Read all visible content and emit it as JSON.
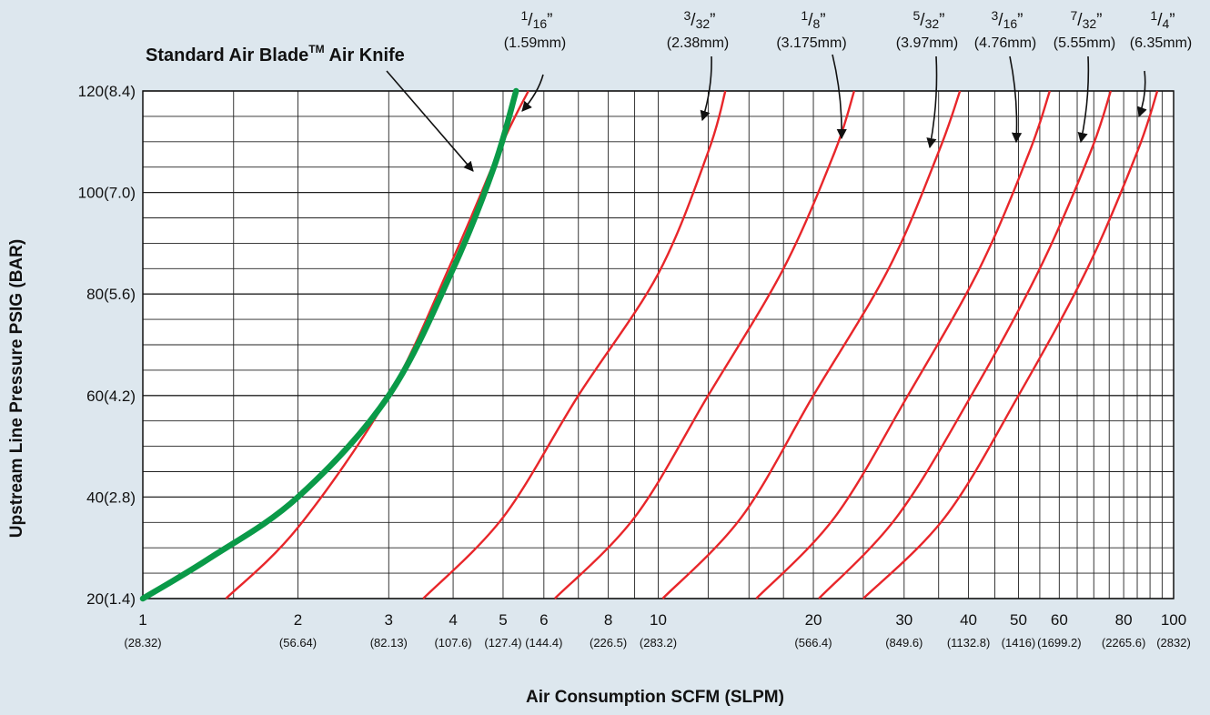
{
  "chart_data": {
    "type": "line",
    "title": "Standard Air Blade™ Air Knife",
    "title_main": "Standard Air Blade",
    "title_tm": "TM",
    "title_tail": " Air Knife",
    "xlabel": "Air Consumption SCFM (SLPM)",
    "ylabel": "Upstream Line Pressure PSIG (BAR)",
    "x_scale": "log",
    "xlim": [
      1,
      100
    ],
    "ylim": [
      20,
      120
    ],
    "grid": true,
    "x_ticks": [
      {
        "main": "1",
        "sub": "(28.32)"
      },
      {
        "main": "2",
        "sub": "(56.64)"
      },
      {
        "main": "3",
        "sub": "(82.13)"
      },
      {
        "main": "4",
        "sub": "(107.6)"
      },
      {
        "main": "5",
        "sub": "(127.4)"
      },
      {
        "main": "6",
        "sub": "(144.4)"
      },
      {
        "main": "8",
        "sub": "(226.5)"
      },
      {
        "main": "10",
        "sub": "(283.2)"
      },
      {
        "main": "20",
        "sub": "(566.4)"
      },
      {
        "main": "30",
        "sub": "(849.6)"
      },
      {
        "main": "40",
        "sub": "(1132.8)"
      },
      {
        "main": "50",
        "sub": "(1416)"
      },
      {
        "main": "60",
        "sub": "(1699.2)"
      },
      {
        "main": "80",
        "sub": "(2265.6)"
      },
      {
        "main": "100",
        "sub": "(2832)"
      }
    ],
    "y_ticks": [
      "20(1.4)",
      "40(2.8)",
      "60(4.2)",
      "80(5.6)",
      "100(7.0)",
      "120(8.4)"
    ],
    "air_knife_curve": {
      "color": "#0a9a48",
      "x": [
        1.0,
        1.35,
        2.0,
        3.0,
        4.0,
        4.8,
        5.3
      ],
      "y": [
        20,
        28,
        40,
        60,
        85,
        105,
        120
      ]
    },
    "nozzle_sizes": [
      {
        "num": "1",
        "den": "16",
        "mm": "(1.59mm)",
        "x": [
          1.45,
          2.0,
          3.0,
          4.0,
          5.0,
          5.6
        ],
        "y": [
          20,
          34,
          60,
          87,
          110,
          120
        ]
      },
      {
        "num": "3",
        "den": "32",
        "mm": "(2.38mm)",
        "x": [
          3.5,
          5.0,
          7.0,
          10.0,
          12.5,
          13.5
        ],
        "y": [
          20,
          36,
          60,
          84,
          108,
          120
        ]
      },
      {
        "num": "1",
        "den": "8",
        "mm": "(3.175mm)",
        "x": [
          6.3,
          9.0,
          12.5,
          17.5,
          22.0,
          24.0
        ],
        "y": [
          20,
          36,
          60,
          85,
          108,
          120
        ]
      },
      {
        "num": "5",
        "den": "32",
        "mm": "(3.97mm)",
        "x": [
          10.2,
          14.5,
          20.0,
          28.0,
          35.0,
          38.5
        ],
        "y": [
          20,
          36,
          60,
          85,
          108,
          120
        ]
      },
      {
        "num": "3",
        "den": "16",
        "mm": "(4.76mm)",
        "x": [
          15.5,
          22.0,
          30.5,
          42.0,
          52.5,
          57.5
        ],
        "y": [
          20,
          36,
          60,
          85,
          108,
          120
        ]
      },
      {
        "num": "7",
        "den": "32",
        "mm": "(5.55mm)",
        "x": [
          20.5,
          29.0,
          40.5,
          55.0,
          69.0,
          75.5
        ],
        "y": [
          20,
          36,
          60,
          85,
          108,
          120
        ]
      },
      {
        "num": "1",
        "den": "4",
        "mm": "(6.35mm)",
        "x": [
          25.0,
          36.0,
          50.0,
          68.0,
          85.0,
          93.0
        ],
        "y": [
          20,
          36,
          60,
          85,
          108,
          120
        ]
      }
    ],
    "curve_color": "#e8262a"
  }
}
